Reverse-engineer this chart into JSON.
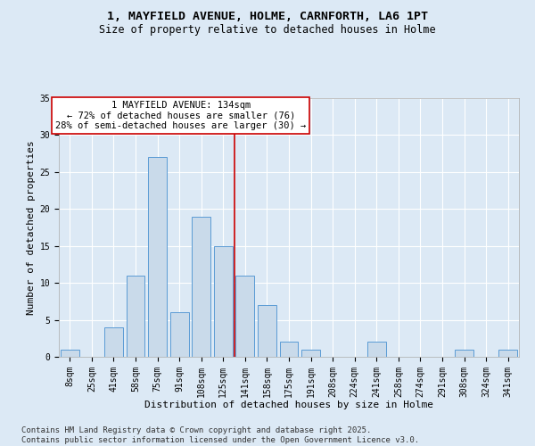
{
  "title_line1": "1, MAYFIELD AVENUE, HOLME, CARNFORTH, LA6 1PT",
  "title_line2": "Size of property relative to detached houses in Holme",
  "xlabel": "Distribution of detached houses by size in Holme",
  "ylabel": "Number of detached properties",
  "bar_color": "#c9daea",
  "bar_edge_color": "#5b9bd5",
  "bg_color": "#dce9f5",
  "grid_color": "#ffffff",
  "categories": [
    "8sqm",
    "25sqm",
    "41sqm",
    "58sqm",
    "75sqm",
    "91sqm",
    "108sqm",
    "125sqm",
    "141sqm",
    "158sqm",
    "175sqm",
    "191sqm",
    "208sqm",
    "224sqm",
    "241sqm",
    "258sqm",
    "274sqm",
    "291sqm",
    "308sqm",
    "324sqm",
    "341sqm"
  ],
  "values": [
    1,
    0,
    4,
    11,
    27,
    6,
    19,
    15,
    11,
    7,
    2,
    1,
    0,
    0,
    2,
    0,
    0,
    0,
    1,
    0,
    1
  ],
  "ylim": [
    0,
    35
  ],
  "yticks": [
    0,
    5,
    10,
    15,
    20,
    25,
    30,
    35
  ],
  "property_label": "1 MAYFIELD AVENUE: 134sqm",
  "annotation_line1": "← 72% of detached houses are smaller (76)",
  "annotation_line2": "28% of semi-detached houses are larger (30) →",
  "vline_color": "#cc0000",
  "vline_position": 7.5,
  "annotation_box_color": "#cc0000",
  "footnote": "Contains HM Land Registry data © Crown copyright and database right 2025.\nContains public sector information licensed under the Open Government Licence v3.0.",
  "title_fontsize": 9.5,
  "subtitle_fontsize": 8.5,
  "axis_label_fontsize": 8,
  "tick_fontsize": 7,
  "annotation_fontsize": 7.5,
  "footnote_fontsize": 6.5
}
